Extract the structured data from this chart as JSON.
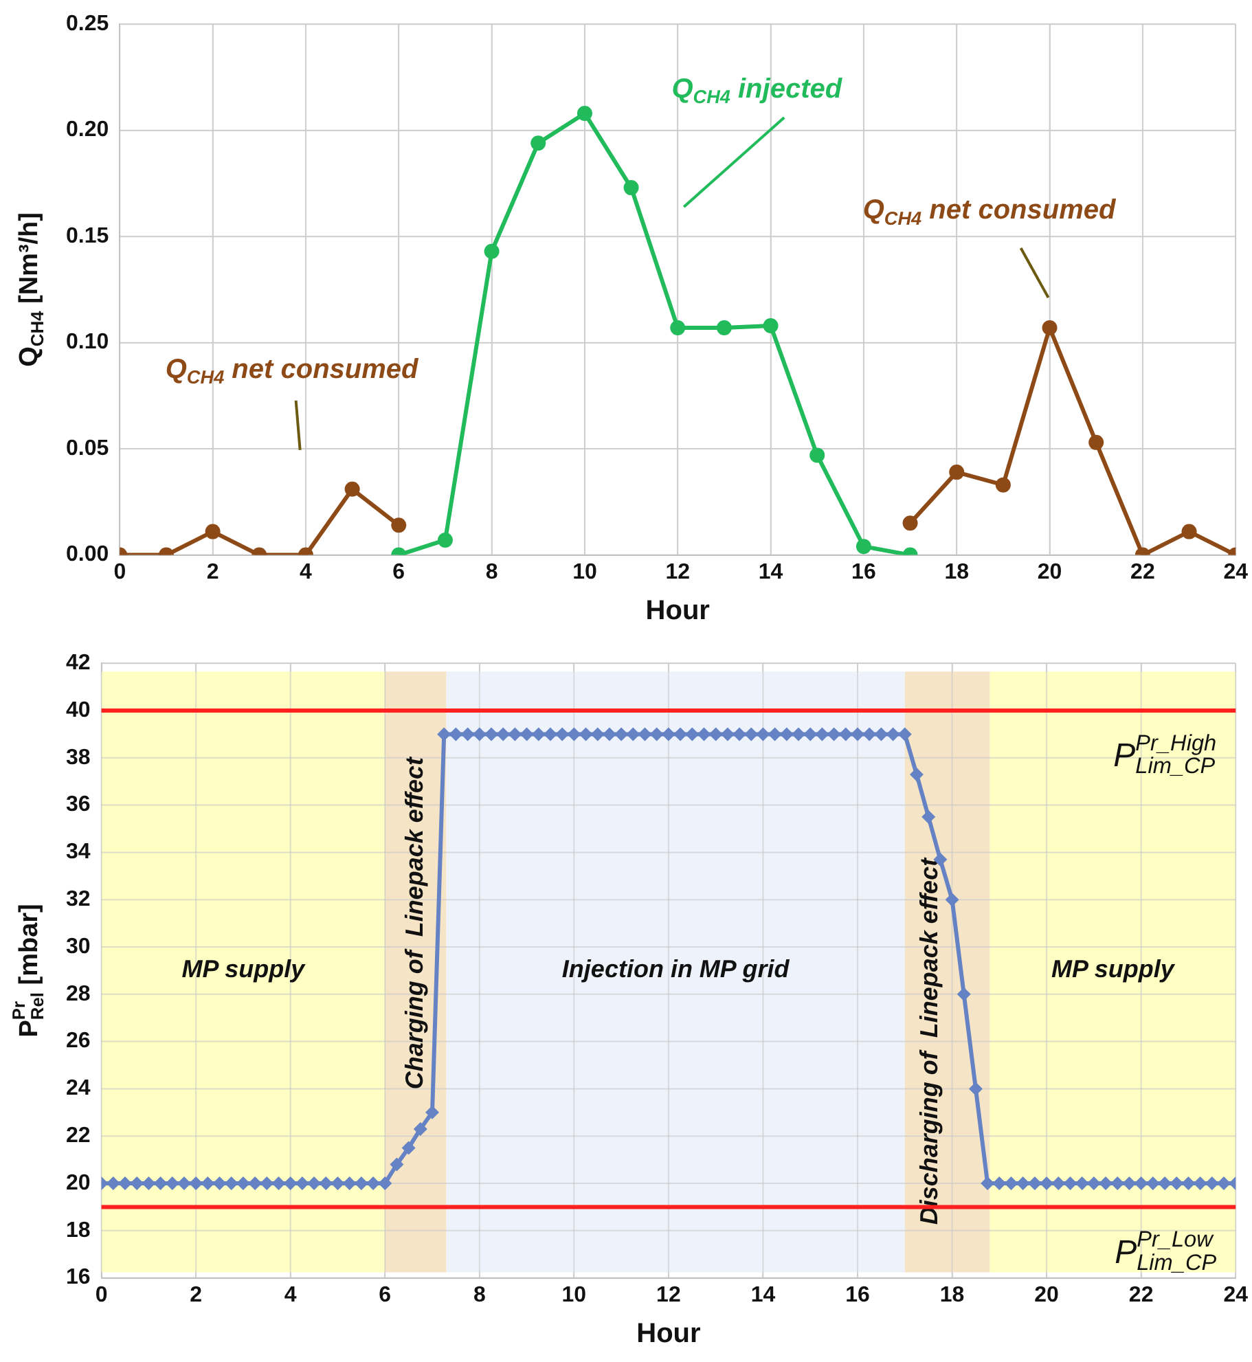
{
  "chart_data": [
    {
      "type": "line",
      "xlabel": "Hour",
      "ylabel": "Q$_{CH4}$ [Nm³/h]",
      "xlim": [
        0,
        24
      ],
      "xticks": [
        0,
        2,
        4,
        6,
        8,
        10,
        12,
        14,
        16,
        18,
        20,
        22,
        24
      ],
      "ylim": [
        0,
        0.25
      ],
      "yticks": [
        {
          "value": 0,
          "label": "0.00"
        },
        {
          "value": 0.05,
          "label": "0.05"
        },
        {
          "value": 0.1,
          "label": "0.10"
        },
        {
          "value": 0.15,
          "label": "0.15"
        },
        {
          "value": 0.2,
          "label": "0.20"
        },
        {
          "value": 0.25,
          "label": "0.25"
        }
      ],
      "grid": true,
      "marker": "circle",
      "series": [
        {
          "color": "#8e4a16",
          "x": [
            0,
            1,
            2,
            3,
            4,
            5,
            6
          ],
          "values": [
            0,
            0,
            0.011,
            0,
            0,
            0.031,
            0.014
          ]
        },
        {
          "color": "#22bb5c",
          "x": [
            6,
            7,
            8,
            9,
            10,
            11,
            12,
            13,
            14,
            15,
            16,
            17
          ],
          "values": [
            0,
            0.007,
            0.143,
            0.194,
            0.208,
            0.173,
            0.107,
            0.107,
            0.108,
            0.047,
            0.004,
            0
          ]
        },
        {
          "color": "#8e4a16",
          "x": [
            17,
            18,
            19,
            20,
            21,
            22,
            23,
            24
          ],
          "values": [
            0.015,
            0.039,
            0.033,
            0.107,
            0.053,
            0,
            0.011,
            0
          ]
        }
      ],
      "annotations": [
        "Q$_{CH4}$ net consumed",
        "Q$_{CH4}$ injected",
        "Q$_{CH4}$ net consumed"
      ]
    },
    {
      "type": "line",
      "xlabel": "Hour",
      "ylabel": "P$^{Pr}$$_{Rel}$ [mbar]",
      "xlim": [
        0,
        24
      ],
      "xticks": [
        0,
        2,
        4,
        6,
        8,
        10,
        12,
        14,
        16,
        18,
        20,
        22,
        24
      ],
      "ylim": [
        16,
        42
      ],
      "yticks": [
        16,
        18,
        20,
        22,
        24,
        26,
        28,
        30,
        32,
        34,
        36,
        38,
        40,
        42
      ],
      "grid": true,
      "marker": "diamond",
      "series": [
        {
          "color": "#6583c4",
          "x": [
            0,
            0.25,
            0.5,
            0.75,
            1,
            1.25,
            1.5,
            1.75,
            2,
            2.25,
            2.5,
            2.75,
            3,
            3.25,
            3.5,
            3.75,
            4,
            4.25,
            4.5,
            4.75,
            5,
            5.25,
            5.5,
            5.75,
            6,
            6.25,
            6.5,
            6.75,
            7,
            7.25,
            7.5,
            7.75,
            8,
            8.25,
            8.5,
            8.75,
            9,
            9.25,
            9.5,
            9.75,
            10,
            10.25,
            10.5,
            10.75,
            11,
            11.25,
            11.5,
            11.75,
            12,
            12.25,
            12.5,
            12.75,
            13,
            13.25,
            13.5,
            13.75,
            14,
            14.25,
            14.5,
            14.75,
            15,
            15.25,
            15.5,
            15.75,
            16,
            16.25,
            16.5,
            16.75,
            17,
            17.25,
            17.5,
            17.75,
            18,
            18.25,
            18.5,
            18.75,
            19,
            19.25,
            19.5,
            19.75,
            20,
            20.25,
            20.5,
            20.75,
            21,
            21.25,
            21.5,
            21.75,
            22,
            22.25,
            22.5,
            22.75,
            23,
            23.25,
            23.5,
            23.75,
            24
          ],
          "values": [
            20,
            20,
            20,
            20,
            20,
            20,
            20,
            20,
            20,
            20,
            20,
            20,
            20,
            20,
            20,
            20,
            20,
            20,
            20,
            20,
            20,
            20,
            20,
            20,
            20,
            20.8,
            21.5,
            22.3,
            23,
            39,
            39,
            39,
            39,
            39,
            39,
            39,
            39,
            39,
            39,
            39,
            39,
            39,
            39,
            39,
            39,
            39,
            39,
            39,
            39,
            39,
            39,
            39,
            39,
            39,
            39,
            39,
            39,
            39,
            39,
            39,
            39,
            39,
            39,
            39,
            39,
            39,
            39,
            39,
            39,
            37.3,
            35.5,
            33.7,
            32,
            28,
            24,
            20,
            20,
            20,
            20,
            20,
            20,
            20,
            20,
            20,
            20,
            20,
            20,
            20,
            20,
            20,
            20,
            20,
            20,
            20,
            20,
            20,
            20
          ]
        }
      ],
      "ref_lines": [
        {
          "axis": "y",
          "value": 40,
          "label": "P$^{Pr_High}$$_{Lim_CP}$",
          "color": "#ff2020"
        },
        {
          "axis": "y",
          "value": 19,
          "label": "P$^{Pr_Low}$$_{Lim_CP}$",
          "color": "#ff2020"
        }
      ],
      "bands": [
        {
          "axis": "x",
          "from": 0,
          "to": 6,
          "label": "MP supply",
          "color": "#ffffc4"
        },
        {
          "axis": "x",
          "from": 6,
          "to": 7.3,
          "label": "Charging of  Linepack effect",
          "color": "#f6e4c6"
        },
        {
          "axis": "x",
          "from": 7.3,
          "to": 17,
          "label": "Injection in MP grid",
          "color": "#eef3fb"
        },
        {
          "axis": "x",
          "from": 17,
          "to": 18.8,
          "label": "Discharging of  Linepack effect",
          "color": "#f6e4c6"
        },
        {
          "axis": "x",
          "from": 18.8,
          "to": 24,
          "label": "MP supply",
          "color": "#ffffc4"
        }
      ]
    }
  ]
}
